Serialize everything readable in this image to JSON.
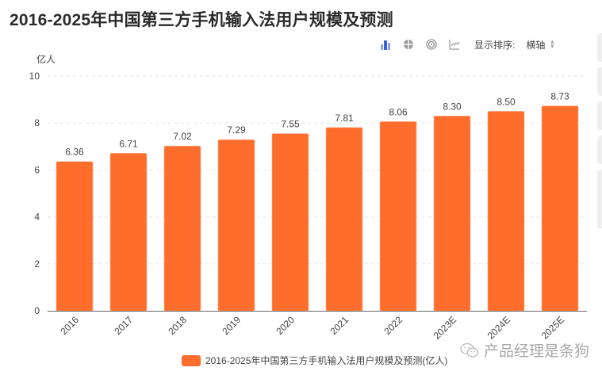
{
  "title": "2016-2025年中国第三方手机输入法用户规模及预测",
  "toolbar": {
    "icons": [
      "bar-chart-icon",
      "pie-chart-icon",
      "radar-chart-icon",
      "line-chart-icon"
    ],
    "sort_label": "显示排序:",
    "sort_value": "横轴"
  },
  "y_unit": "亿人",
  "legend": {
    "label": "2016-2025年中国第三方手机输入法用户规模及预测(亿人)",
    "color": "#ff6d2d"
  },
  "watermark": "产品经理是条狗",
  "colors": {
    "bar": "#ff6d2d",
    "grid": "#dfe3ee",
    "axis": "#666666",
    "text": "#444444"
  },
  "chart_data": {
    "type": "bar",
    "title": "2016-2025年中国第三方手机输入法用户规模及预测",
    "categories": [
      "2016",
      "2017",
      "2018",
      "2019",
      "2020",
      "2021",
      "2022",
      "2023E",
      "2024E",
      "2025E"
    ],
    "series": [
      {
        "name": "2016-2025年中国第三方手机输入法用户规模及预测(亿人)",
        "values": [
          6.36,
          6.71,
          7.02,
          7.29,
          7.55,
          7.81,
          8.06,
          8.3,
          8.5,
          8.73
        ]
      }
    ],
    "data_labels": [
      "6.36",
      "6.71",
      "7.02",
      "7.29",
      "7.55",
      "7.81",
      "8.06",
      "8.30",
      "8.50",
      "8.73"
    ],
    "xlabel": "",
    "ylabel": "亿人",
    "ylim": [
      0,
      10
    ],
    "yticks": [
      0,
      2,
      4,
      6,
      8,
      10
    ],
    "grid": true,
    "legend_position": "bottom",
    "x_tick_rotation": -45
  }
}
